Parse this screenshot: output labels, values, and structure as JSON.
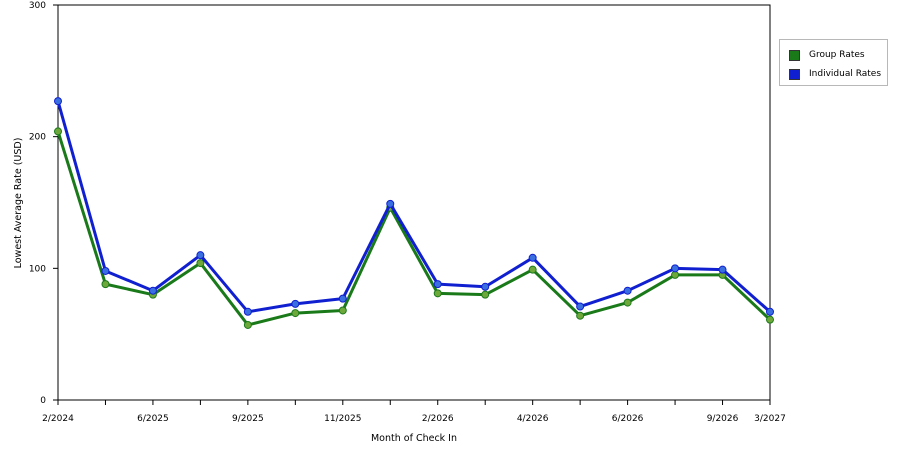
{
  "chart_data": {
    "type": "line",
    "xlabel": "Month of Check In",
    "ylabel": "Lowest Average Rate (USD)",
    "ylim": [
      0,
      300
    ],
    "yticks": [
      0,
      100,
      200,
      300
    ],
    "grid": "horizontal dashed",
    "legend_position": "right",
    "x_tick_labels": [
      "2/2024",
      "6/2025",
      "9/2025",
      "11/2025",
      "2/2026",
      "4/2026",
      "6/2026",
      "9/2026",
      "3/2027"
    ],
    "x_tick_label_indices": [
      0,
      2,
      4,
      6,
      8,
      10,
      12,
      14,
      15
    ],
    "point_count": 16,
    "series": [
      {
        "name": "Group Rates",
        "color": "#1a7a1a",
        "marker_color": "#6fa83a",
        "values": [
          204,
          88,
          80,
          104,
          57,
          66,
          68,
          146,
          81,
          80,
          99,
          64,
          74,
          95,
          95,
          61
        ]
      },
      {
        "name": "Individual Rates",
        "color": "#1020d0",
        "marker_color": "#3a6fe0",
        "values": [
          227,
          98,
          83,
          110,
          67,
          73,
          77,
          149,
          88,
          86,
          108,
          71,
          83,
          100,
          99,
          67
        ]
      }
    ]
  }
}
